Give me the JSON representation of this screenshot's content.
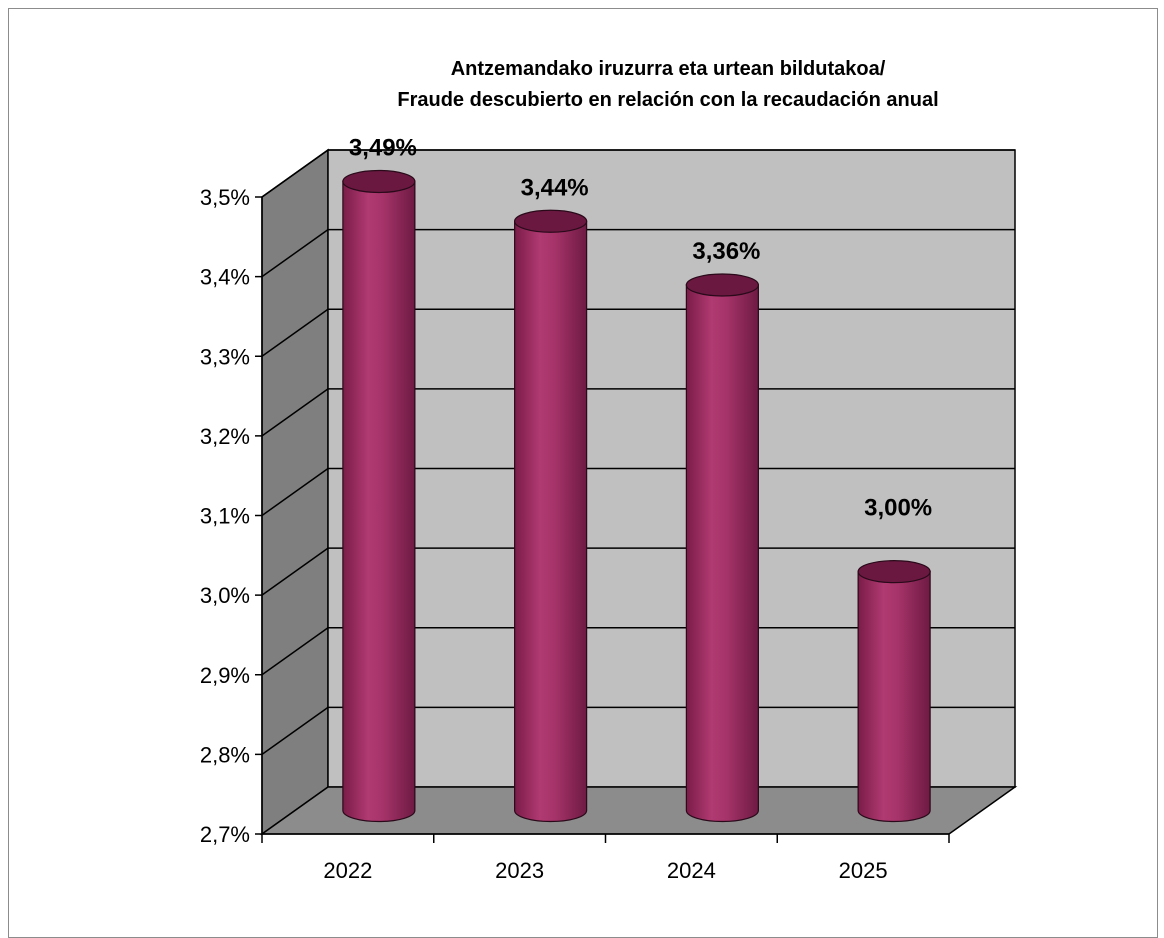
{
  "chart_data": {
    "type": "bar",
    "style": "3d-cylinder",
    "title_lines": [
      "Antzemandako iruzurra eta urtean bildutakoa/",
      "Fraude descubierto en relación con la recaudación anual"
    ],
    "categories": [
      "2022",
      "2023",
      "2024",
      "2025"
    ],
    "values": [
      3.49,
      3.44,
      3.36,
      3.0
    ],
    "data_labels": [
      "3,49%",
      "3,44%",
      "3,36%",
      "3,00%"
    ],
    "ylim": [
      2.7,
      3.5
    ],
    "yticks": [
      2.7,
      2.8,
      2.9,
      3.0,
      3.1,
      3.2,
      3.3,
      3.4,
      3.5
    ],
    "ytick_labels": [
      "2,7%",
      "2,8%",
      "2,9%",
      "3,0%",
      "3,1%",
      "3,2%",
      "3,3%",
      "3,4%",
      "3,5%"
    ],
    "grid": true,
    "legend": "none",
    "colors": {
      "bar_body": "#9b2a5f",
      "bar_highlight": "#c04a82",
      "bar_top": "#6a1840",
      "back_wall": "#c0c0c0",
      "side_wall": "#7f7f7f",
      "floor": "#8c8c8c",
      "gridline": "#000000"
    }
  }
}
